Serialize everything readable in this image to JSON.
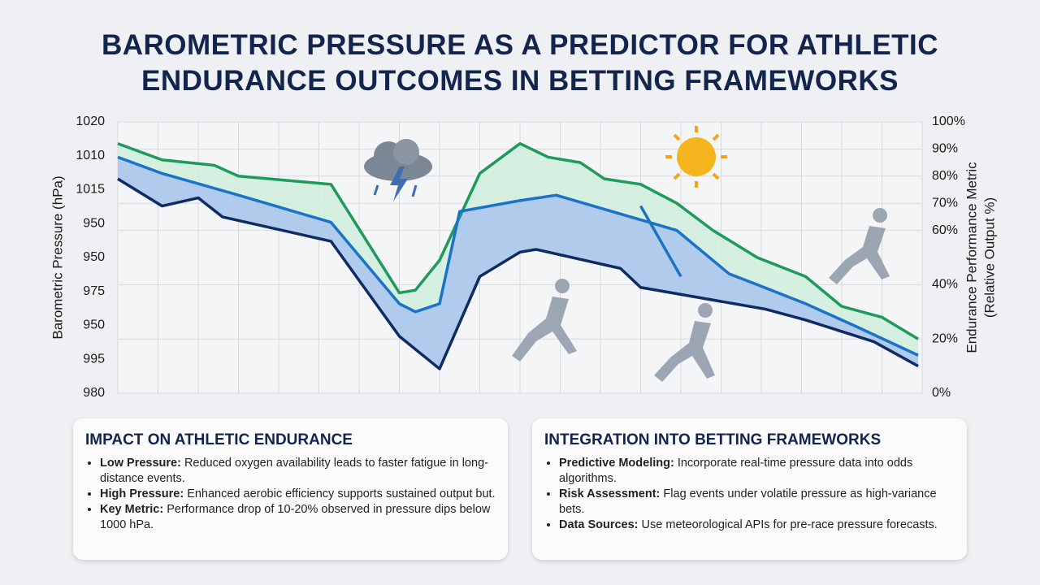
{
  "title": "BAROMETRIC PRESSURE AS A PREDICTOR FOR ATHLETIC ENDURANCE OUTCOMES IN BETTING FRAMEWORKS",
  "chart_data": {
    "type": "line",
    "y_axis_label": "Barometric Pressure (hPa)",
    "y2_axis_label": [
      "Endurance Performance Metric",
      "(Relative Output %)"
    ],
    "y_left_labels": [
      "1020",
      "1010",
      "1015",
      "950",
      "950",
      "975",
      "950",
      "995",
      "980"
    ],
    "xlim": [
      0,
      20
    ],
    "ylim": [
      0,
      100
    ],
    "yticks": [
      {
        "value": 100,
        "label": "100%"
      },
      {
        "value": 90,
        "label": "90%"
      },
      {
        "value": 80,
        "label": "80%"
      },
      {
        "value": 70,
        "label": "70%"
      },
      {
        "value": 60,
        "label": "60%"
      },
      {
        "value": 40,
        "label": "40%"
      },
      {
        "value": 20,
        "label": "20%"
      },
      {
        "value": 0,
        "label": "0%"
      }
    ],
    "grid": true,
    "series": [
      {
        "color": "#1e9a5a",
        "fill": "#cfeedd",
        "x": [
          0,
          1.1,
          2.4,
          3.0,
          5.3,
          7.0,
          7.4,
          8.0,
          9.0,
          10.0,
          10.7,
          11.5,
          12.1,
          13.0,
          13.9,
          14.8,
          15.9,
          17.1,
          18.0,
          19.0,
          19.9
        ],
        "values": [
          92,
          86,
          84,
          80,
          77,
          37,
          38,
          49,
          81,
          92,
          87,
          85,
          79,
          77,
          70,
          60,
          50,
          43,
          32,
          28,
          20
        ]
      },
      {
        "color": "#1a73c8",
        "fill": "#a9c4ec",
        "x": [
          0,
          1.1,
          3.0,
          5.3,
          7.0,
          7.4,
          8.0,
          8.5,
          10.0,
          10.9,
          13.9,
          15.2,
          15.9,
          17.1,
          18.3,
          19.9
        ],
        "values": [
          87,
          81,
          73,
          63,
          33,
          30,
          33,
          67,
          71,
          73,
          60,
          44,
          40,
          33,
          25,
          14
        ]
      },
      {
        "color": "#1a73c8",
        "x": [
          13.0,
          14.0
        ],
        "values": [
          69,
          43
        ]
      },
      {
        "color": "#102a63",
        "x": [
          0,
          1.1,
          2.0,
          2.6,
          5.3,
          7.0,
          8.0,
          9.0,
          10.0,
          10.4,
          12.5,
          13.0,
          16.1,
          17.1,
          18.8,
          19.9
        ],
        "values": [
          79,
          69,
          72,
          65,
          56,
          21,
          9,
          43,
          52,
          53,
          46,
          39,
          31,
          27,
          19,
          10
        ]
      }
    ]
  },
  "cards": [
    {
      "title": "IMPACT ON ATHLETIC ENDURANCE",
      "items": [
        {
          "term": "Low Pressure:",
          "text": "Reduced oxygen availability leads to faster fatigue in long-distance events."
        },
        {
          "term": "High Pressure:",
          "text": "Enhanced aerobic efficiency supports sustained output but."
        },
        {
          "term": "Key Metric:",
          "text": "Performance drop of 10-20% observed in pressure dips below 1000 hPa."
        }
      ]
    },
    {
      "title": "INTEGRATION INTO BETTING FRAMEWORKS",
      "items": [
        {
          "term": "Predictive Modeling:",
          "text": "Incorporate real-time pressure data into odds algorithms."
        },
        {
          "term": "Risk Assessment:",
          "text": "Flag events under volatile pressure as high-variance bets."
        },
        {
          "term": "Data Sources:",
          "text": "Use meteorological APIs for pre-race pressure forecasts."
        }
      ]
    }
  ]
}
